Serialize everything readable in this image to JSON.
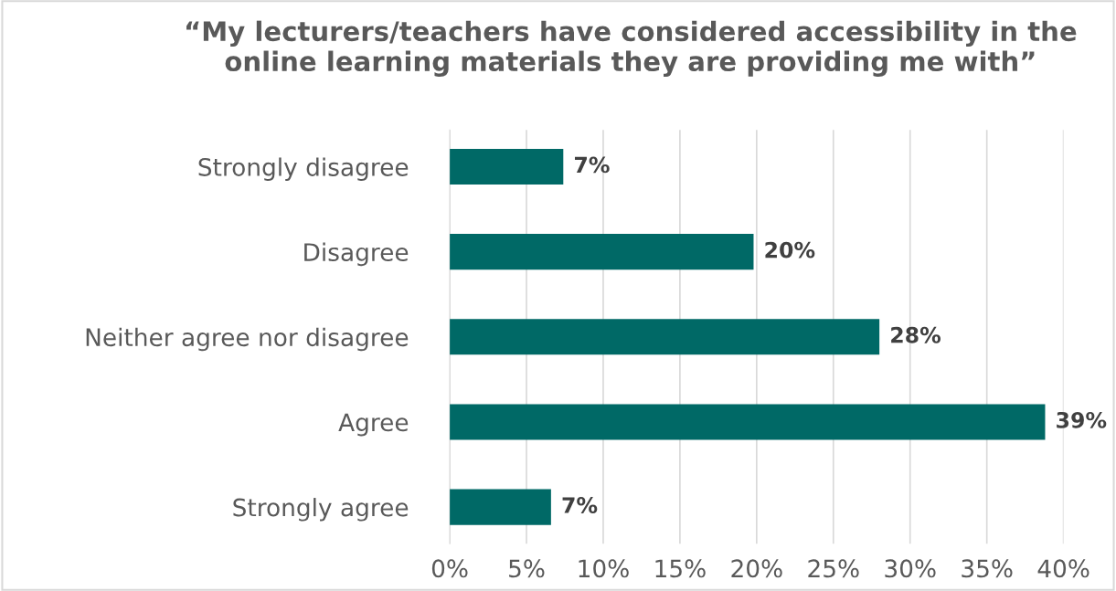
{
  "chart_data": {
    "type": "bar",
    "orientation": "horizontal",
    "title": "“My lecturers/teachers have considered accessibility in the online learning materials they are providing me with”",
    "categories": [
      "Strongly disagree",
      "Disagree",
      "Neither agree nor disagree",
      "Agree",
      "Strongly agree"
    ],
    "values": [
      7.4,
      19.8,
      28.0,
      38.8,
      6.6
    ],
    "value_labels": [
      "7%",
      "20%",
      "28%",
      "39%",
      "7%"
    ],
    "color": "#006966",
    "xlim": [
      0,
      40
    ],
    "xticks": [
      {
        "value": 0,
        "label": "0%"
      },
      {
        "value": 5,
        "label": "5%"
      },
      {
        "value": 10,
        "label": "10%"
      },
      {
        "value": 15,
        "label": "15%"
      },
      {
        "value": 20,
        "label": "20%"
      },
      {
        "value": 25,
        "label": "25%"
      },
      {
        "value": 30,
        "label": "30%"
      },
      {
        "value": 35,
        "label": "35%"
      },
      {
        "value": 40,
        "label": "40%"
      }
    ],
    "grid": "x",
    "legend": false
  }
}
